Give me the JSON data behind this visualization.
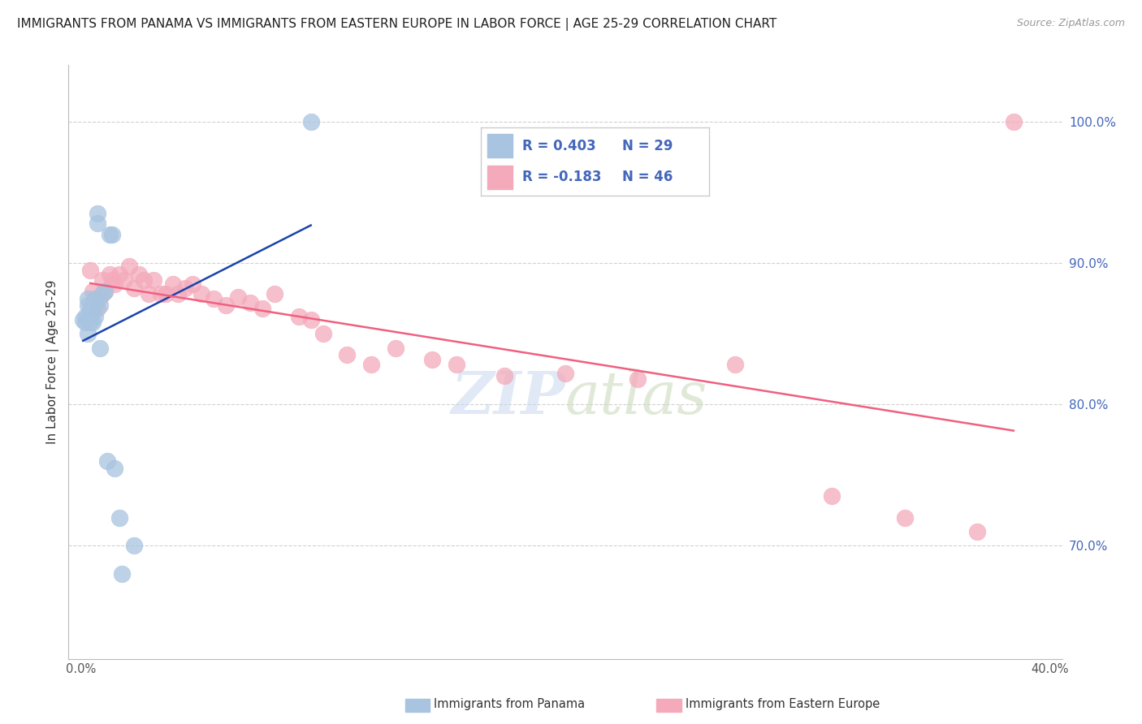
{
  "title": "IMMIGRANTS FROM PANAMA VS IMMIGRANTS FROM EASTERN EUROPE IN LABOR FORCE | AGE 25-29 CORRELATION CHART",
  "source": "Source: ZipAtlas.com",
  "ylabel": "In Labor Force | Age 25-29",
  "xlim": [
    -0.005,
    0.405
  ],
  "ylim": [
    0.62,
    1.04
  ],
  "right_yticks": [
    1.0,
    0.9,
    0.8,
    0.7
  ],
  "xticks": [
    0.0,
    0.4
  ],
  "legend_r_blue": "R = 0.403",
  "legend_n_blue": "N = 29",
  "legend_r_pink": "R = -0.183",
  "legend_n_pink": "N = 46",
  "legend_label_blue": "Immigrants from Panama",
  "legend_label_pink": "Immigrants from Eastern Europe",
  "blue_color": "#A8C4E0",
  "pink_color": "#F4AABB",
  "trendline_blue": "#1A44AA",
  "trendline_pink": "#F06080",
  "blue_x": [
    0.001,
    0.002,
    0.002,
    0.003,
    0.003,
    0.003,
    0.004,
    0.004,
    0.004,
    0.005,
    0.005,
    0.005,
    0.006,
    0.006,
    0.006,
    0.007,
    0.007,
    0.008,
    0.008,
    0.009,
    0.01,
    0.011,
    0.012,
    0.013,
    0.014,
    0.016,
    0.017,
    0.022,
    0.095
  ],
  "blue_y": [
    0.86,
    0.862,
    0.858,
    0.87,
    0.875,
    0.85,
    0.858,
    0.868,
    0.862,
    0.858,
    0.87,
    0.865,
    0.862,
    0.875,
    0.87,
    0.935,
    0.928,
    0.84,
    0.87,
    0.878,
    0.88,
    0.76,
    0.92,
    0.92,
    0.755,
    0.72,
    0.68,
    0.7,
    1.0
  ],
  "pink_x": [
    0.004,
    0.005,
    0.007,
    0.008,
    0.009,
    0.01,
    0.012,
    0.013,
    0.014,
    0.016,
    0.018,
    0.02,
    0.022,
    0.024,
    0.026,
    0.028,
    0.03,
    0.033,
    0.035,
    0.038,
    0.04,
    0.043,
    0.046,
    0.05,
    0.055,
    0.06,
    0.065,
    0.07,
    0.075,
    0.08,
    0.09,
    0.095,
    0.1,
    0.11,
    0.12,
    0.13,
    0.145,
    0.155,
    0.175,
    0.2,
    0.23,
    0.27,
    0.31,
    0.34,
    0.37,
    0.385
  ],
  "pink_y": [
    0.895,
    0.88,
    0.868,
    0.876,
    0.888,
    0.88,
    0.892,
    0.888,
    0.885,
    0.892,
    0.888,
    0.898,
    0.882,
    0.892,
    0.888,
    0.878,
    0.888,
    0.878,
    0.878,
    0.885,
    0.878,
    0.882,
    0.885,
    0.878,
    0.875,
    0.87,
    0.876,
    0.872,
    0.868,
    0.878,
    0.862,
    0.86,
    0.85,
    0.835,
    0.828,
    0.84,
    0.832,
    0.828,
    0.82,
    0.822,
    0.818,
    0.828,
    0.735,
    0.72,
    0.71,
    1.0
  ],
  "background_color": "#FFFFFF",
  "grid_color": "#CCCCCC",
  "axis_color": "#4466BB",
  "title_color": "#222222",
  "title_fontsize": 11.0,
  "watermark": "ZIPatlas"
}
